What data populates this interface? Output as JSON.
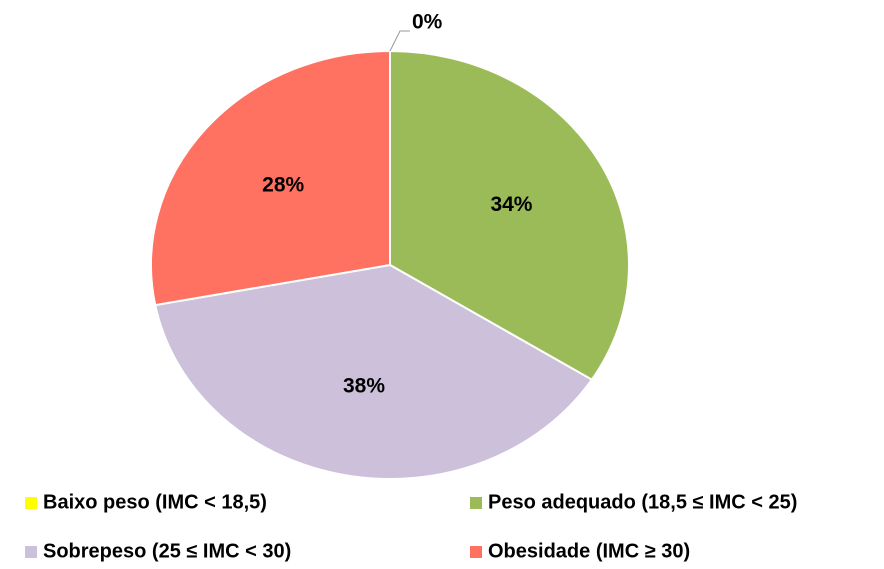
{
  "chart_data": {
    "type": "pie",
    "categories": [
      "Baixo peso (IMC < 18,5)",
      "Peso adequado (18,5 ≤ IMC < 25)",
      "Sobrepeso (25 ≤ IMC < 30)",
      "Obesidade (IMC ≥ 30)"
    ],
    "values": [
      0,
      34,
      38,
      28
    ],
    "value_labels": [
      "0%",
      "34%",
      "38%",
      "28%"
    ],
    "colors": [
      "#ffff00",
      "#9bbb59",
      "#ccc0da",
      "#ff7262"
    ]
  }
}
